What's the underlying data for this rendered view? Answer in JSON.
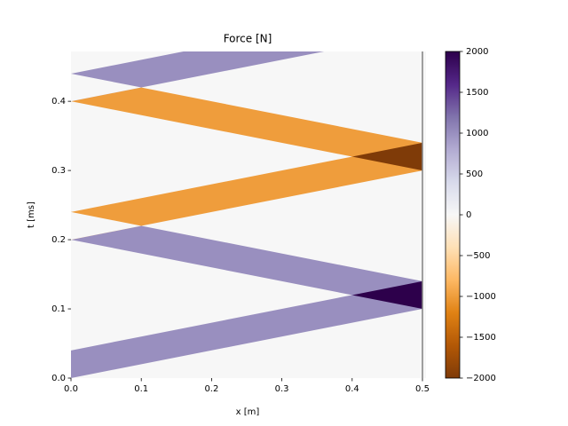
{
  "chart_data": {
    "type": "spacetime",
    "title": "Force [N]",
    "x_label": "x [m]",
    "y_label": "t [ms]",
    "xlim": [
      0,
      0.505
    ],
    "ylim": [
      0,
      0.472
    ],
    "xticks": [
      {
        "value": 0,
        "label": "0.0"
      },
      0.1,
      0.2,
      0.3,
      0.4,
      0.5
    ],
    "yticks": [
      {
        "value": 0,
        "label": "0.0"
      },
      0.1,
      0.2,
      0.3,
      0.4
    ],
    "background_value": 0,
    "regions": [
      {
        "value": 1000,
        "points": [
          [
            0,
            0
          ],
          [
            0.5,
            0.1
          ],
          [
            0.5,
            0.14
          ],
          [
            0,
            0.04
          ]
        ]
      },
      {
        "value": 1000,
        "points": [
          [
            0.5,
            0.1
          ],
          [
            0.5,
            0.14
          ],
          [
            0,
            0.24
          ],
          [
            0,
            0.2
          ]
        ]
      },
      {
        "value": -1000,
        "points": [
          [
            0,
            0.2
          ],
          [
            0.5,
            0.3
          ],
          [
            0.5,
            0.34
          ],
          [
            0,
            0.24
          ]
        ]
      },
      {
        "value": -1000,
        "points": [
          [
            0.5,
            0.3
          ],
          [
            0.5,
            0.34
          ],
          [
            0,
            0.44
          ],
          [
            0,
            0.4
          ]
        ]
      },
      {
        "value": 1000,
        "points": [
          [
            0,
            0.4
          ],
          [
            0.5,
            0.5
          ],
          [
            0.5,
            0.54
          ],
          [
            0,
            0.44
          ]
        ]
      },
      {
        "value": 2000,
        "points": [
          [
            0.4,
            0.12
          ],
          [
            0.5,
            0.1
          ],
          [
            0.5,
            0.14
          ]
        ]
      },
      {
        "value": -2000,
        "points": [
          [
            0.4,
            0.32
          ],
          [
            0.5,
            0.3
          ],
          [
            0.5,
            0.34
          ]
        ]
      },
      {
        "value": 0,
        "points": [
          [
            0,
            0.2
          ],
          [
            0.1,
            0.22
          ],
          [
            0,
            0.24
          ]
        ]
      },
      {
        "value": 0,
        "points": [
          [
            0,
            0.4
          ],
          [
            0.1,
            0.42
          ],
          [
            0,
            0.44
          ]
        ]
      }
    ],
    "vline": {
      "x": 0.5,
      "color": "#808080"
    },
    "colorbar": {
      "lim": [
        -2000,
        2000
      ],
      "ticks": [
        {
          "value": -2000,
          "label": "−2000"
        },
        {
          "value": -1500,
          "label": "−1500"
        },
        {
          "value": -1000,
          "label": "−1000"
        },
        {
          "value": -500,
          "label": "−500"
        },
        0,
        500,
        1000,
        1500,
        2000
      ],
      "colormap": [
        "#7f3b08",
        "#b35806",
        "#e08214",
        "#fdb863",
        "#fee0b6",
        "#f7f7f7",
        "#d8daeb",
        "#b2abd2",
        "#8073ac",
        "#542788",
        "#2d004b"
      ]
    }
  }
}
